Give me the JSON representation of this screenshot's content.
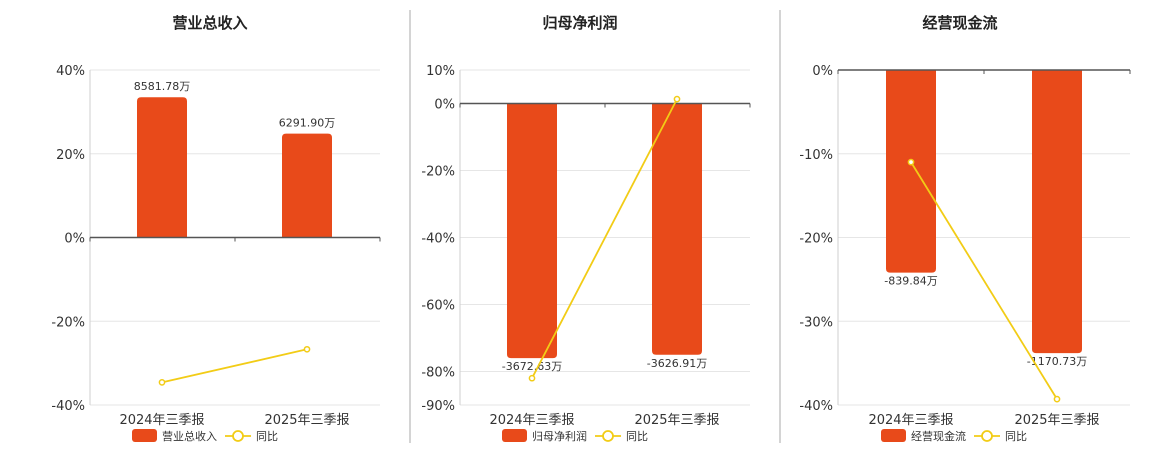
{
  "colors": {
    "bar": "#e84a1a",
    "line": "#f2cc16",
    "grid": "#e6e6e6",
    "axis": "#555555",
    "divider": "#aaaaaa"
  },
  "chart_data": [
    {
      "type": "bar",
      "title": "营业总收入",
      "categories": [
        "2024年三季报",
        "2025年三季报"
      ],
      "series": [
        {
          "name": "营业总收入",
          "type": "bar",
          "values": [
            33.5,
            24.8
          ],
          "labels": [
            "8581.78万",
            "6291.90万"
          ]
        },
        {
          "name": "同比",
          "type": "line",
          "values": [
            -34.6,
            -26.7
          ]
        }
      ],
      "ylim": [
        -40,
        40
      ],
      "yticks": [
        40,
        20,
        0,
        -20,
        -40
      ],
      "ytick_labels": [
        "40%",
        "20%",
        "0%",
        "-20%",
        "-40%"
      ],
      "grid": true,
      "legend": "bottom"
    },
    {
      "type": "bar",
      "title": "归母净利润",
      "categories": [
        "2024年三季报",
        "2025年三季报"
      ],
      "series": [
        {
          "name": "归母净利润",
          "type": "bar",
          "values": [
            -76,
            -75
          ],
          "labels": [
            "-3672.63万",
            "-3626.91万"
          ]
        },
        {
          "name": "同比",
          "type": "line",
          "values": [
            -82,
            1.3
          ]
        }
      ],
      "ylim": [
        -90,
        10
      ],
      "yticks": [
        10,
        0,
        -20,
        -40,
        -60,
        -80,
        -90
      ],
      "ytick_labels": [
        "10%",
        "0%",
        "-20%",
        "-40%",
        "-60%",
        "-80%",
        "-90%"
      ],
      "grid": true,
      "legend": "bottom"
    },
    {
      "type": "bar",
      "title": "经营现金流",
      "categories": [
        "2024年三季报",
        "2025年三季报"
      ],
      "series": [
        {
          "name": "经营现金流",
          "type": "bar",
          "values": [
            -24.2,
            -33.8
          ],
          "labels": [
            "-839.84万",
            "-1170.73万"
          ]
        },
        {
          "name": "同比",
          "type": "line",
          "values": [
            -11,
            -39.3
          ]
        }
      ],
      "ylim": [
        -40,
        0
      ],
      "yticks": [
        0,
        -10,
        -20,
        -30,
        -40
      ],
      "ytick_labels": [
        "0%",
        "-10%",
        "-20%",
        "-30%",
        "-40%"
      ],
      "grid": true,
      "legend": "bottom"
    }
  ]
}
